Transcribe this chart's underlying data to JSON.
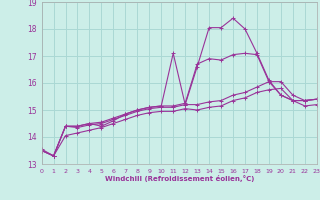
{
  "xlabel": "Windchill (Refroidissement éolien,°C)",
  "background_color": "#cceee8",
  "grid_color": "#aad8d4",
  "line_color": "#993399",
  "xlim": [
    0,
    23
  ],
  "ylim": [
    13,
    19
  ],
  "yticks": [
    13,
    14,
    15,
    16,
    17,
    18,
    19
  ],
  "xticks": [
    0,
    1,
    2,
    3,
    4,
    5,
    6,
    7,
    8,
    9,
    10,
    11,
    12,
    13,
    14,
    15,
    16,
    17,
    18,
    19,
    20,
    21,
    22,
    23
  ],
  "series": [
    [
      13.5,
      13.3,
      14.4,
      14.4,
      14.5,
      14.4,
      14.6,
      14.85,
      15.0,
      15.1,
      15.15,
      17.1,
      15.2,
      16.6,
      18.05,
      18.05,
      18.4,
      18.0,
      17.1,
      16.1,
      15.55,
      15.35,
      15.35,
      15.4
    ],
    [
      13.5,
      13.3,
      14.4,
      14.4,
      14.5,
      14.55,
      14.7,
      14.85,
      15.0,
      15.1,
      15.15,
      15.15,
      15.25,
      16.7,
      16.9,
      16.85,
      17.05,
      17.1,
      17.05,
      16.05,
      15.55,
      15.35,
      15.35,
      15.4
    ],
    [
      13.5,
      13.3,
      14.4,
      14.35,
      14.45,
      14.5,
      14.65,
      14.8,
      14.95,
      15.05,
      15.1,
      15.1,
      15.2,
      15.2,
      15.3,
      15.35,
      15.55,
      15.65,
      15.85,
      16.05,
      16.05,
      15.55,
      15.35,
      15.4
    ],
    [
      13.55,
      13.3,
      14.05,
      14.15,
      14.25,
      14.35,
      14.5,
      14.65,
      14.8,
      14.9,
      14.95,
      14.95,
      15.05,
      15.0,
      15.1,
      15.15,
      15.35,
      15.45,
      15.65,
      15.75,
      15.8,
      15.35,
      15.15,
      15.2
    ]
  ]
}
